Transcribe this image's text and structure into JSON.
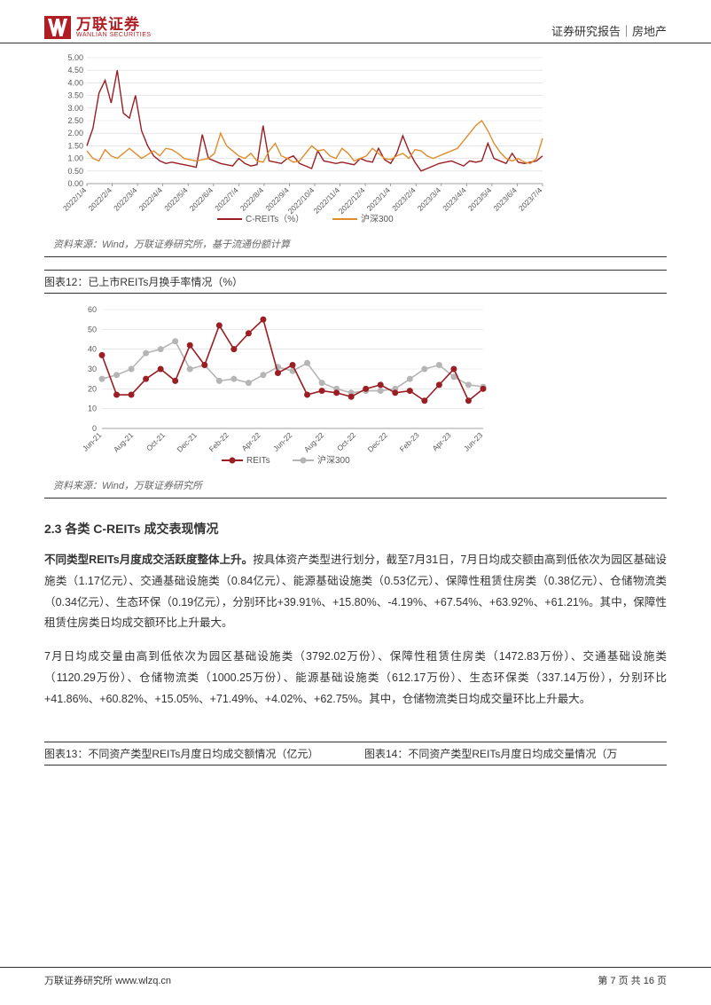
{
  "header": {
    "logo_cn": "万联证券",
    "logo_en": "WANLIAN SECURITIES",
    "right": "证券研究报告｜房地产"
  },
  "chart1": {
    "type": "line",
    "ylim": [
      0,
      5.0
    ],
    "ytick_step": 0.5,
    "yticks": [
      "0.00",
      "0.50",
      "1.00",
      "1.50",
      "2.00",
      "2.50",
      "3.00",
      "3.50",
      "4.00",
      "4.50",
      "5.00"
    ],
    "xlabels": [
      "2022/1/4",
      "2022/2/4",
      "2022/3/4",
      "2022/4/4",
      "2022/5/4",
      "2022/6/4",
      "2022/7/4",
      "2022/8/4",
      "2022/9/4",
      "2022/10/4",
      "2022/11/4",
      "2022/12/4",
      "2023/1/4",
      "2023/2/4",
      "2023/3/4",
      "2023/4/4",
      "2023/5/4",
      "2023/6/4",
      "2023/7/4"
    ],
    "series": [
      {
        "name": "C-REITs（%）",
        "color": "#9a1e23",
        "width": 1.4,
        "values": [
          1.5,
          2.2,
          3.6,
          4.1,
          3.2,
          4.5,
          2.8,
          2.6,
          3.5,
          2.1,
          1.5,
          1.1,
          0.9,
          0.8,
          0.85,
          0.8,
          0.75,
          0.7,
          0.65,
          1.95,
          1.0,
          0.9,
          0.8,
          0.75,
          0.7,
          1.0,
          0.8,
          0.7,
          0.75,
          2.3,
          0.9,
          0.85,
          0.8,
          1.0,
          1.1,
          0.8,
          0.7,
          0.6,
          1.3,
          0.9,
          0.85,
          0.8,
          0.85,
          0.8,
          0.75,
          1.0,
          0.9,
          0.85,
          1.4,
          0.95,
          0.8,
          1.2,
          1.9,
          1.3,
          0.85,
          0.5,
          0.6,
          0.7,
          0.8,
          0.85,
          0.9,
          0.8,
          0.7,
          0.9,
          0.85,
          0.9,
          1.6,
          1.0,
          0.9,
          0.8,
          1.2,
          0.85,
          0.8,
          0.85,
          0.9,
          1.1
        ]
      },
      {
        "name": "沪深300",
        "color": "#e08c2d",
        "width": 1.4,
        "values": [
          1.3,
          1.0,
          0.9,
          1.35,
          1.1,
          1.0,
          1.2,
          1.4,
          1.2,
          1.0,
          1.15,
          1.3,
          1.1,
          1.4,
          1.35,
          1.2,
          1.0,
          0.95,
          0.9,
          0.95,
          1.0,
          1.2,
          2.0,
          1.5,
          1.3,
          1.1,
          1.0,
          1.2,
          0.9,
          0.85,
          1.3,
          1.6,
          1.1,
          1.0,
          0.85,
          0.9,
          1.2,
          1.5,
          1.3,
          1.35,
          1.1,
          1.0,
          1.4,
          1.2,
          0.9,
          1.0,
          1.1,
          1.4,
          1.2,
          1.0,
          0.95,
          1.1,
          1.2,
          1.0,
          1.35,
          1.3,
          1.1,
          1.0,
          1.1,
          1.2,
          1.3,
          1.4,
          1.7,
          2.0,
          2.3,
          2.5,
          2.1,
          1.6,
          1.25,
          1.0,
          0.9,
          1.0,
          0.85,
          0.8,
          1.0,
          1.8
        ]
      }
    ],
    "legend_pos": "bottom",
    "background_color": "#ffffff",
    "grid_color": "#d9d9d9"
  },
  "source1": "资料来源：Wind，万联证券研究所，基于流通份额计算",
  "chart12_title": "图表12：已上市REITs月换手率情况（%）",
  "chart2": {
    "type": "line",
    "ylim": [
      0,
      60
    ],
    "ytick_step": 10,
    "yticks": [
      "0",
      "10",
      "20",
      "30",
      "40",
      "50",
      "60"
    ],
    "xlabels": [
      "Jun-21",
      "Aug-21",
      "Oct-21",
      "Dec-21",
      "Feb-22",
      "Apr-22",
      "Jun-22",
      "Aug-22",
      "Oct-22",
      "Dec-22",
      "Feb-23",
      "Apr-23",
      "Jun-23"
    ],
    "series": [
      {
        "name": "REITs",
        "color": "#9a1e23",
        "width": 1.6,
        "marker": "circle",
        "marker_size": 3.5,
        "values": [
          37,
          17,
          17,
          25,
          30,
          24,
          42,
          32,
          52,
          40,
          48,
          55,
          28,
          32,
          17,
          19,
          18,
          16,
          20,
          22,
          18,
          19,
          14,
          22,
          30,
          14,
          20
        ]
      },
      {
        "name": "沪深300",
        "color": "#b5b5b5",
        "width": 1.6,
        "marker": "circle",
        "marker_size": 3.5,
        "values": [
          25,
          27,
          30,
          38,
          40,
          44,
          30,
          32,
          24,
          25,
          23,
          27,
          31,
          29,
          33,
          23,
          20,
          18,
          19,
          19,
          20,
          25,
          30,
          32,
          26,
          22,
          21
        ]
      }
    ],
    "legend_pos": "bottom",
    "background_color": "#ffffff",
    "grid_color": "#d9d9d9"
  },
  "source2": "资料来源：Wind，万联证券研究所",
  "section": {
    "heading": "2.3 各类 C-REITs 成交表现情况",
    "p1_lead": "不同类型REITs月度成交活跃度整体上升。",
    "p1_rest": "按具体资产类型进行划分，截至7月31日，7月日均成交额由高到低依次为园区基础设施类（1.17亿元）、交通基础设施类（0.84亿元）、能源基础设施类（0.53亿元）、保障性租赁住房类（0.38亿元）、仓储物流类（0.34亿元）、生态环保（0.19亿元），分别环比+39.91%、+15.80%、-4.19%、+67.54%、+63.92%、+61.21%。其中，保障性租赁住房类日均成交额环比上升最大。",
    "p2": "7月日均成交量由高到低依次为园区基础设施类（3792.02万份）、保障性租赁住房类（1472.83万份）、交通基础设施类（1120.29万份）、仓储物流类（1000.25万份）、能源基础设施类（612.17万份）、生态环保类（337.14万份），分别环比+41.86%、+60.82%、+15.05%、+71.49%、+4.02%、+62.75%。其中，仓储物流类日均成交量环比上升最大。"
  },
  "chart13_title": "图表13：不同资产类型REITs月度日均成交额情况（亿元）",
  "chart14_title": "图表14：不同资产类型REITs月度日均成交量情况（万",
  "footer": {
    "left": "万联证券研究所 www.wlzq.cn",
    "right": "第 7 页 共 16 页"
  }
}
